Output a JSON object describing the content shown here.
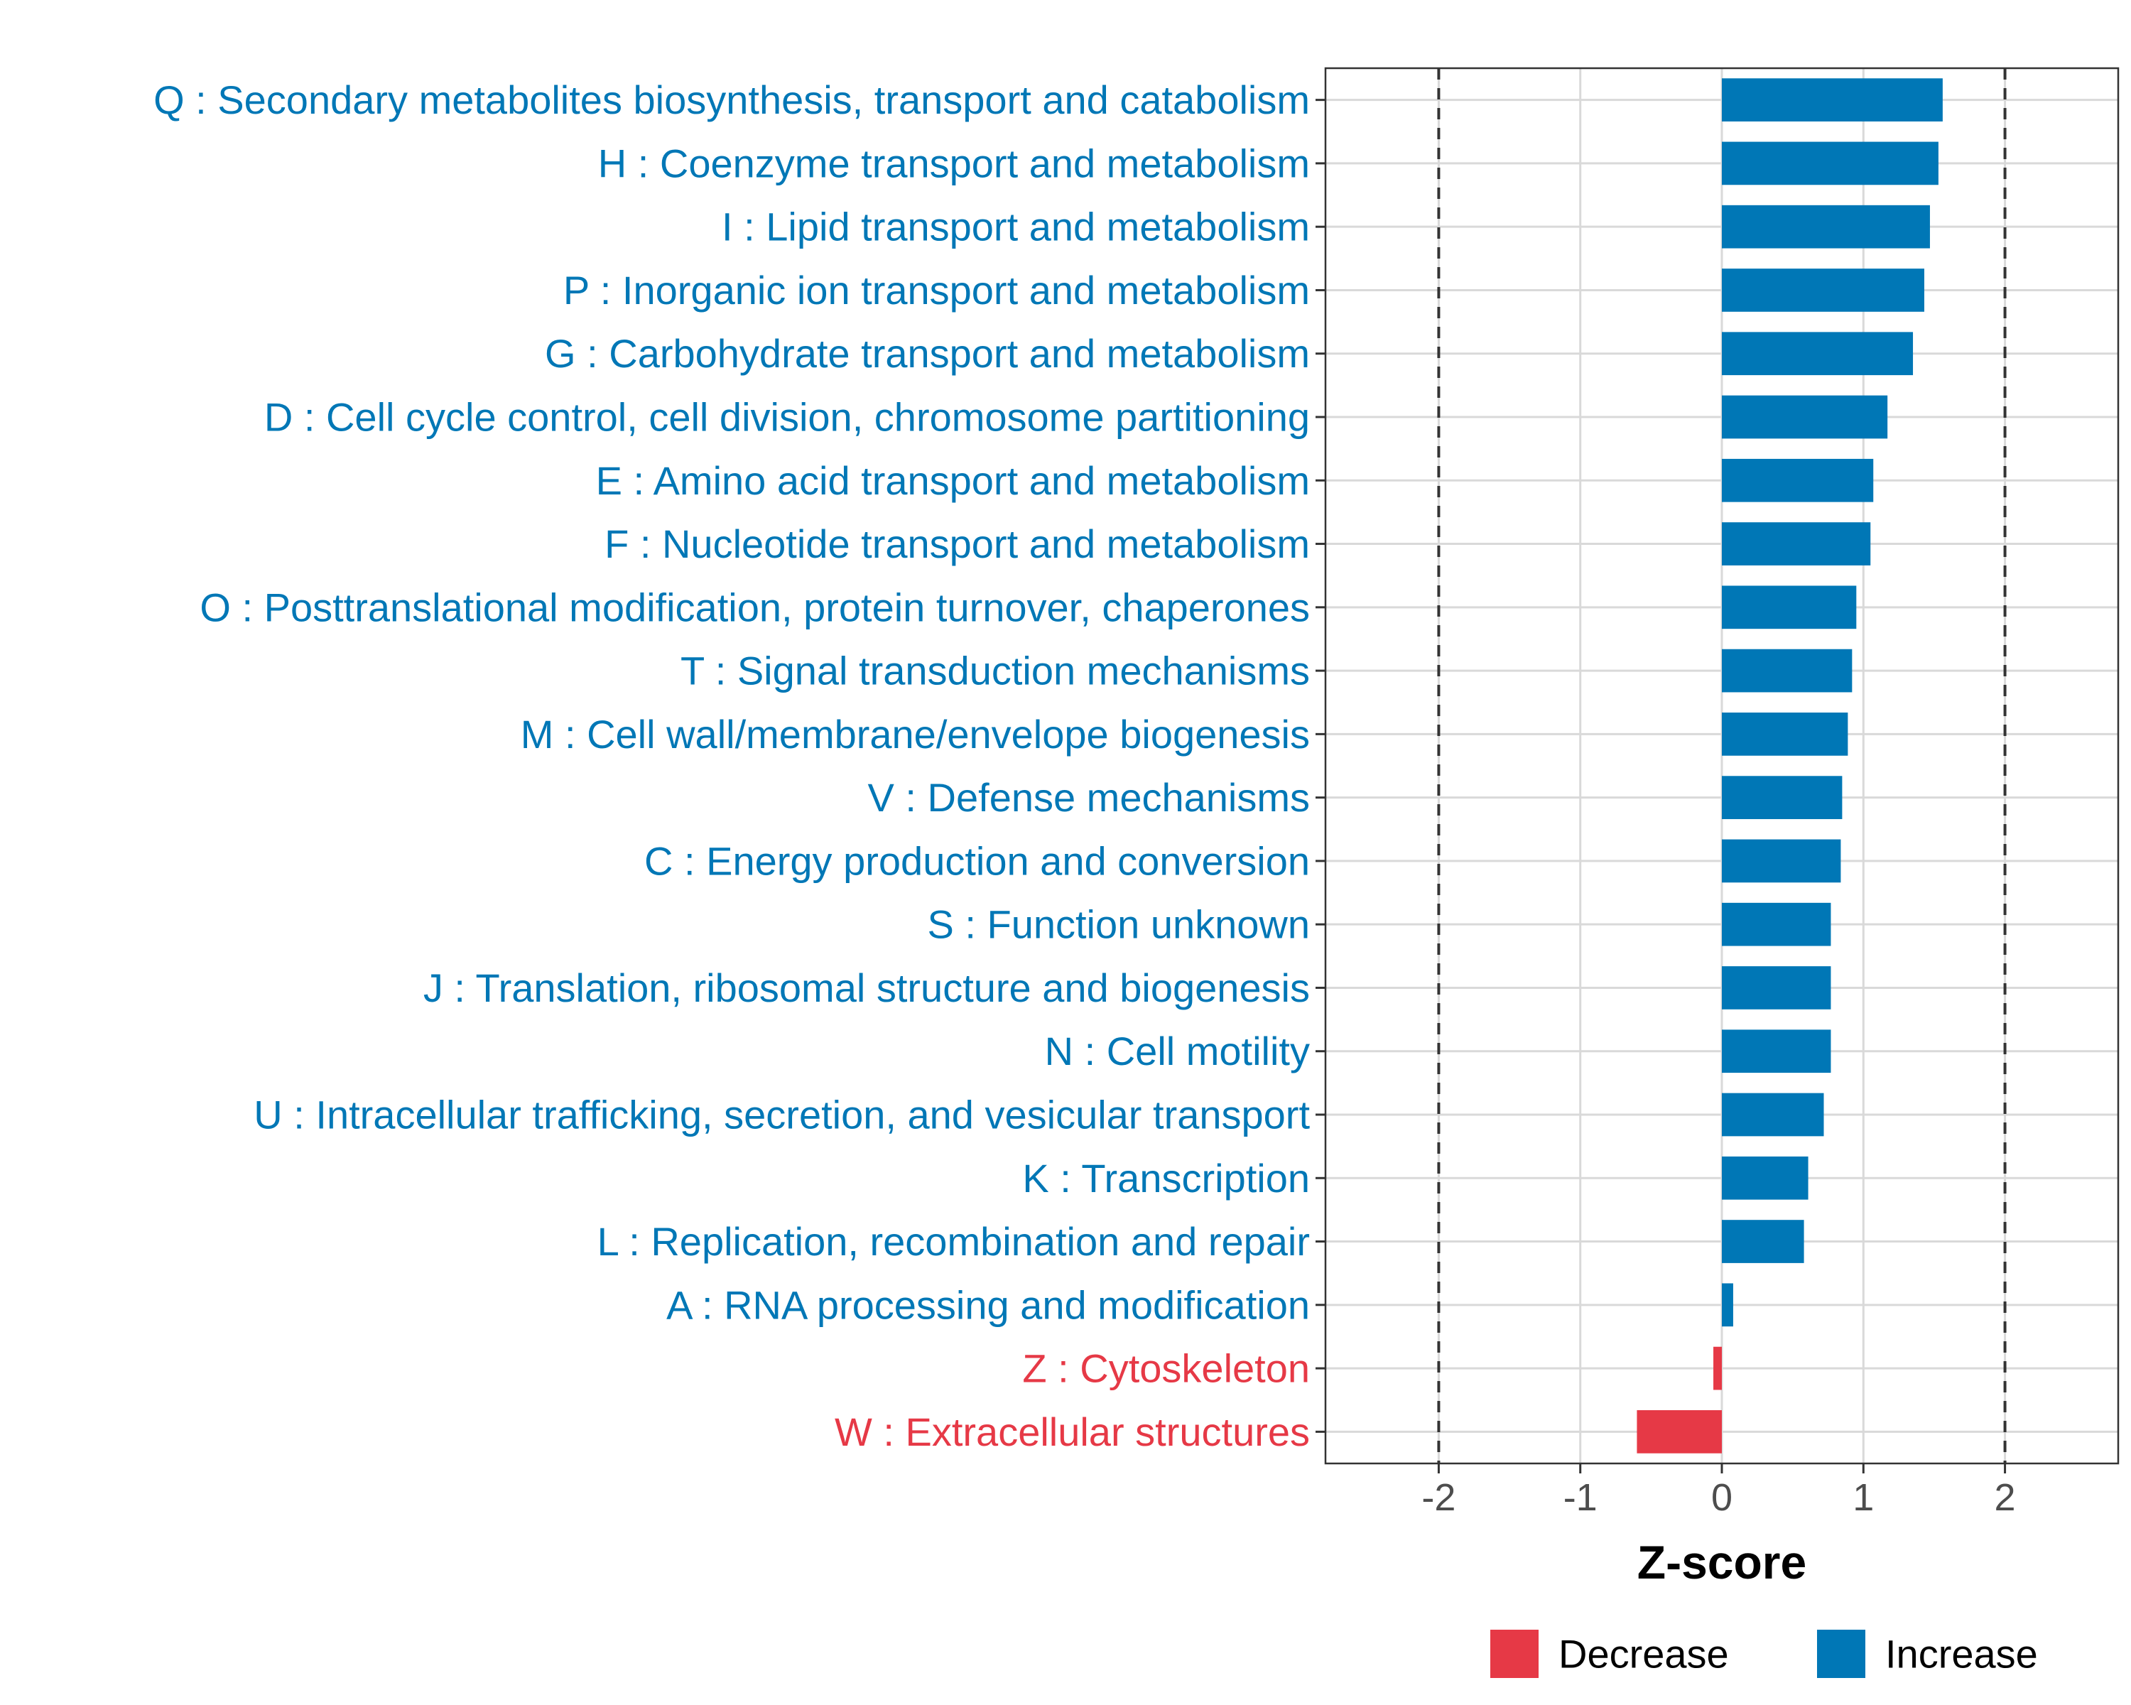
{
  "chart_data": {
    "type": "bar",
    "orientation": "horizontal",
    "xlabel": "Z-score",
    "xlim": [
      -2.8,
      2.8
    ],
    "xticks": [
      -2,
      -1,
      0,
      1,
      2
    ],
    "xtick_labels": [
      "-2",
      "-1",
      "0",
      "1",
      "2"
    ],
    "reference_lines": [
      -2,
      2
    ],
    "grid": true,
    "legend_position": "bottom",
    "colors": {
      "Decrease": "#e63946",
      "Increase": "#0077b6"
    },
    "legend": [
      {
        "label": "Decrease",
        "color": "#e63946"
      },
      {
        "label": "Increase",
        "color": "#0077b6"
      }
    ],
    "categories": [
      "Q : Secondary metabolites biosynthesis, transport and catabolism",
      "H : Coenzyme transport and metabolism",
      "I : Lipid transport and metabolism",
      "P : Inorganic ion transport and metabolism",
      "G : Carbohydrate transport and metabolism",
      "D : Cell cycle control, cell division, chromosome partitioning",
      "E : Amino acid transport and metabolism",
      "F : Nucleotide transport and metabolism",
      "O : Posttranslational modification, protein turnover, chaperones",
      "T : Signal transduction mechanisms",
      "M : Cell wall/membrane/envelope biogenesis",
      "V : Defense mechanisms",
      "C : Energy production and conversion",
      "S : Function unknown",
      "J : Translation, ribosomal structure and biogenesis",
      "N : Cell motility",
      "U : Intracellular trafficking, secretion, and vesicular transport",
      "K : Transcription",
      "L : Replication, recombination and repair",
      "A : RNA processing and modification",
      "Z : Cytoskeleton",
      "W : Extracellular structures"
    ],
    "values": [
      1.56,
      1.53,
      1.47,
      1.43,
      1.35,
      1.17,
      1.07,
      1.05,
      0.95,
      0.92,
      0.89,
      0.85,
      0.84,
      0.77,
      0.77,
      0.77,
      0.72,
      0.61,
      0.58,
      0.08,
      -0.06,
      -0.6
    ],
    "groups": [
      "Increase",
      "Increase",
      "Increase",
      "Increase",
      "Increase",
      "Increase",
      "Increase",
      "Increase",
      "Increase",
      "Increase",
      "Increase",
      "Increase",
      "Increase",
      "Increase",
      "Increase",
      "Increase",
      "Increase",
      "Increase",
      "Increase",
      "Increase",
      "Decrease",
      "Decrease"
    ]
  }
}
